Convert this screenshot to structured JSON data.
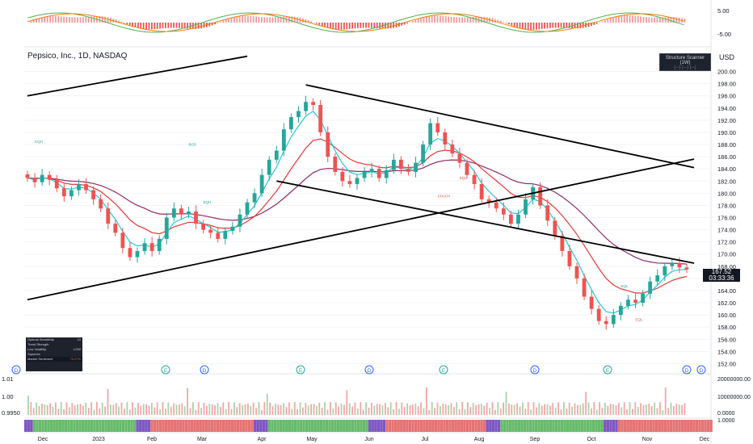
{
  "chart_data": {
    "type": "candlestick",
    "title": "Pepsico, Inc., 1D, NASDAQ",
    "currency": "USD",
    "y_ticks": [
      "200.00",
      "198.00",
      "196.00",
      "194.00",
      "192.00",
      "190.00",
      "188.00",
      "186.00",
      "184.00",
      "182.00",
      "180.00",
      "178.00",
      "176.00",
      "174.00",
      "172.00",
      "170.00",
      "168.00",
      "166.00",
      "164.00",
      "162.00",
      "160.00",
      "158.00",
      "156.00",
      "154.00",
      "152.00"
    ],
    "ylim": [
      151,
      201
    ],
    "x_labels": [
      "Dec",
      "2023",
      "Feb",
      "Mar",
      "Apr",
      "May",
      "Jun",
      "Jul",
      "Aug",
      "Sep",
      "Oct",
      "Nov",
      "Dec"
    ],
    "last_price": "167.52",
    "countdown": "03:33:36",
    "close_path": [
      182.5,
      181.8,
      183.0,
      182.2,
      180.8,
      179.5,
      180.5,
      181.5,
      180.5,
      179.0,
      177.5,
      175.0,
      173.5,
      171.0,
      169.5,
      170.5,
      171.8,
      170.5,
      172.5,
      176.0,
      177.5,
      176.5,
      177.0,
      175.0,
      174.0,
      173.5,
      172.5,
      173.8,
      174.5,
      176.5,
      178.5,
      180.0,
      183.0,
      185.5,
      187.0,
      190.5,
      192.5,
      193.5,
      195.0,
      194.5,
      190.0,
      186.0,
      183.5,
      182.0,
      181.5,
      182.5,
      183.5,
      184.0,
      182.5,
      183.8,
      185.5,
      184.0,
      183.5,
      185.0,
      188.0,
      191.5,
      190.0,
      188.0,
      186.5,
      185.0,
      183.0,
      181.5,
      179.0,
      178.5,
      177.5,
      176.5,
      175.0,
      176.5,
      179.0,
      181.0,
      178.0,
      175.5,
      173.0,
      170.5,
      168.0,
      166.0,
      163.0,
      161.0,
      159.0,
      158.5,
      160.0,
      161.5,
      162.5,
      162.0,
      163.5,
      165.5,
      166.5,
      168.0,
      168.5,
      167.8,
      167.5
    ],
    "ema_fast": "cyan",
    "ema_mid": "red",
    "ema_slow": "purple",
    "labels": {
      "eqh_left": "EQH",
      "bos_left": "BOS",
      "eqh_mid": "EQH",
      "eql_top": "EQL",
      "eql_mid": "EQL",
      "eql_bottom": "EQL",
      "choch": "CHoCH"
    },
    "events": [
      "D",
      "E",
      "D",
      "E",
      "D",
      "E",
      "D",
      "E",
      "D",
      "D"
    ],
    "indicator_top": {
      "ticks": [
        "5.00",
        "-5.00"
      ]
    },
    "volume": {
      "ticks": [
        "20000000.00",
        "10000000.00",
        "0.0000"
      ],
      "left_ticks": [
        "1.01",
        "1.00",
        "0.9950"
      ]
    },
    "strip": {
      "tick": "1.0000"
    }
  },
  "colors": {
    "up": "#26a69a",
    "down": "#ef5350",
    "ema_fast": "#26c6da",
    "ema_mid": "#e53935",
    "ema_slow": "#8e2a6b",
    "macd_a": "#4caf50",
    "macd_b": "#f57c00",
    "trend": "#000000"
  },
  "scanner": {
    "title": "Structure Scanner (1W)",
    "sub": "(--) (--) (--)"
  },
  "table": {
    "rows": [
      {
        "label": "Optimal Sensitivity",
        "value": "10"
      },
      {
        "label": "Trend Strength",
        "value": ""
      },
      {
        "label": "Low Volatility",
        "value": "LOW"
      },
      {
        "label": "Squeeze",
        "value": ""
      },
      {
        "label": "Market Sentiment",
        "value": "75.27%"
      }
    ]
  }
}
